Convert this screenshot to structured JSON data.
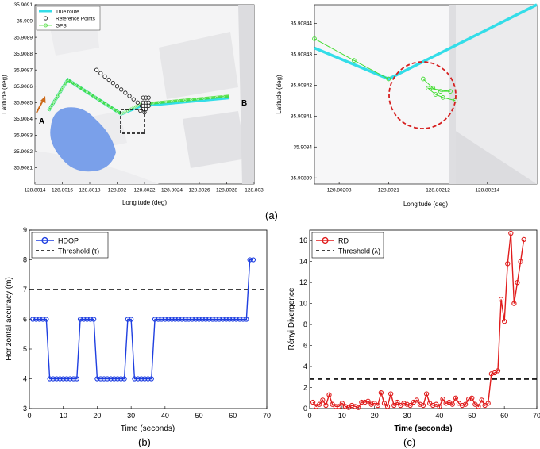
{
  "captions": {
    "a": "(a)",
    "b": "(b)",
    "c": "(c)"
  },
  "colors": {
    "true_route": "#33dde8",
    "gps": "#44dd33",
    "ref": "#222222",
    "hdop": "#1f3fe0",
    "rd": "#e01c1c",
    "threshold": "#000000",
    "lake": "#7aa0ea",
    "circle": "#d62020",
    "arrow": "#cc6a1a"
  },
  "chart_data": [
    {
      "type": "line",
      "panel": "a-left",
      "xlabel": "Longitude (deg)",
      "ylabel": "Latitude (deg)",
      "xlim": [
        128.8014,
        128.803
      ],
      "ylim": [
        35.908,
        35.9091
      ],
      "xticks": [
        "128.8014",
        "128.8016",
        "128.8018",
        "128.802",
        "128.8022",
        "128.8024",
        "128.8026",
        "128.8028",
        "128.803"
      ],
      "yticks": [
        "35.9081",
        "35.9082",
        "35.9083",
        "35.9084",
        "35.9085",
        "35.9086",
        "35.9087",
        "35.9088",
        "35.9089",
        "35.909",
        "35.9091"
      ],
      "legend": [
        "True route",
        "Reference Points",
        "GPS"
      ],
      "legend_position": "top-left",
      "annotations": {
        "start": "A",
        "end": "B"
      },
      "series": [
        {
          "name": "True route",
          "x": [
            128.8015,
            128.80164,
            128.80203,
            128.80217,
            128.80282
          ],
          "y": [
            35.90845,
            35.90864,
            35.90843,
            35.90848,
            35.90853
          ]
        },
        {
          "name": "GPS",
          "x": [
            128.8015,
            128.80164,
            128.80203,
            128.80217,
            128.80282
          ],
          "y": [
            35.90845,
            35.90864,
            35.90843,
            35.90849,
            35.90854
          ]
        },
        {
          "name": "Reference Points",
          "x": [
            128.80185,
            128.80188,
            128.80191,
            128.80194,
            128.80197,
            128.802,
            128.80203,
            128.80206,
            128.80209,
            128.80212,
            128.80215,
            128.80218,
            128.80219,
            128.80221,
            128.80223,
            128.80219,
            128.80221,
            128.80223,
            128.80219,
            128.80221,
            128.80223,
            128.80219,
            128.80221,
            128.8022,
            128.80217
          ],
          "y": [
            35.9087,
            35.90868,
            35.90866,
            35.90864,
            35.90862,
            35.9086,
            35.90858,
            35.90856,
            35.90854,
            35.90852,
            35.9085,
            35.90848,
            35.90853,
            35.90853,
            35.90853,
            35.9085,
            35.9085,
            35.9085,
            35.90848,
            35.90848,
            35.90848,
            35.90846,
            35.90846,
            35.90844,
            35.90845
          ]
        }
      ]
    },
    {
      "type": "line",
      "panel": "a-right",
      "xlabel": "Longitude (deg)",
      "ylabel": "Latitude (deg)",
      "xlim": [
        128.80207,
        128.80216
      ],
      "ylim": [
        35.908388,
        35.908446
      ],
      "xticks": [
        "128.80208",
        "128.8021",
        "128.80212",
        "128.80214"
      ],
      "yticks": [
        "35.90839",
        "35.9084",
        "35.90841",
        "35.90842",
        "35.90843",
        "35.90844"
      ],
      "series": [
        {
          "name": "True route",
          "x": [
            128.80207,
            128.8021,
            128.80216
          ],
          "y": [
            35.908432,
            35.908422,
            35.908446
          ]
        },
        {
          "name": "GPS",
          "x": [
            128.80207,
            128.802086,
            128.8021,
            128.802114,
            128.802118,
            128.802121,
            128.802125,
            128.802116,
            128.802119,
            128.802122,
            128.802127
          ],
          "y": [
            35.908435,
            35.908428,
            35.908422,
            35.908422,
            35.908419,
            35.908418,
            35.908418,
            35.908419,
            35.908417,
            35.908416,
            35.908415
          ]
        }
      ]
    },
    {
      "type": "line",
      "panel": "b",
      "xlabel": "Time (seconds)",
      "ylabel": "Horizontal accuracy (m)",
      "xlim": [
        0,
        70
      ],
      "ylim": [
        3,
        9
      ],
      "xticks": [
        "0",
        "10",
        "20",
        "30",
        "40",
        "50",
        "60",
        "70"
      ],
      "yticks": [
        "3",
        "4",
        "5",
        "6",
        "7",
        "8",
        "9"
      ],
      "legend_position": "top-left",
      "threshold": 7,
      "series": [
        {
          "name": "HDOP",
          "x": [
            1,
            2,
            3,
            4,
            5,
            6,
            7,
            8,
            9,
            10,
            11,
            12,
            13,
            14,
            15,
            16,
            17,
            18,
            19,
            20,
            21,
            22,
            23,
            24,
            25,
            26,
            27,
            28,
            29,
            30,
            31,
            32,
            33,
            34,
            35,
            36,
            37,
            38,
            39,
            40,
            41,
            42,
            43,
            44,
            45,
            46,
            47,
            48,
            49,
            50,
            51,
            52,
            53,
            54,
            55,
            56,
            57,
            58,
            59,
            60,
            61,
            62,
            63,
            64,
            65,
            66
          ],
          "values": [
            6,
            6,
            6,
            6,
            6,
            4,
            4,
            4,
            4,
            4,
            4,
            4,
            4,
            4,
            6,
            6,
            6,
            6,
            6,
            4,
            4,
            4,
            4,
            4,
            4,
            4,
            4,
            4,
            6,
            6,
            4,
            4,
            4,
            4,
            4,
            4,
            6,
            6,
            6,
            6,
            6,
            6,
            6,
            6,
            6,
            6,
            6,
            6,
            6,
            6,
            6,
            6,
            6,
            6,
            6,
            6,
            6,
            6,
            6,
            6,
            6,
            6,
            6,
            6,
            8,
            8
          ]
        },
        {
          "name": "Threshold (τ)",
          "values": [
            7,
            7
          ]
        }
      ]
    },
    {
      "type": "line",
      "panel": "c",
      "xlabel": "Time (seconds)",
      "ylabel": "Rényi Divergence",
      "xlim": [
        0,
        70
      ],
      "ylim": [
        0,
        17
      ],
      "xticks": [
        "0",
        "10",
        "20",
        "30",
        "40",
        "50",
        "60",
        "70"
      ],
      "yticks": [
        "0",
        "2",
        "4",
        "6",
        "8",
        "10",
        "12",
        "14",
        "16"
      ],
      "legend_position": "top-left",
      "threshold": 2.8,
      "series": [
        {
          "name": "RD",
          "x": [
            1,
            2,
            3,
            4,
            5,
            6,
            7,
            8,
            9,
            10,
            11,
            12,
            13,
            14,
            15,
            16,
            17,
            18,
            19,
            20,
            21,
            22,
            23,
            24,
            25,
            26,
            27,
            28,
            29,
            30,
            31,
            32,
            33,
            34,
            35,
            36,
            37,
            38,
            39,
            40,
            41,
            42,
            43,
            44,
            45,
            46,
            47,
            48,
            49,
            50,
            51,
            52,
            53,
            54,
            55,
            56,
            57,
            58,
            59,
            60,
            61,
            62,
            63,
            64,
            65,
            66
          ],
          "values": [
            0.6,
            0.2,
            0.4,
            0.8,
            0.3,
            1.3,
            0.4,
            0.2,
            0.2,
            0.5,
            0.2,
            0.1,
            0.3,
            0.2,
            0.1,
            0.6,
            0.6,
            0.7,
            0.4,
            0.5,
            0.3,
            1.5,
            0.5,
            0.2,
            1.4,
            0.3,
            0.6,
            0.3,
            0.5,
            0.4,
            0.3,
            0.6,
            0.8,
            0.4,
            0.3,
            1.4,
            0.5,
            0.3,
            0.4,
            0.2,
            0.9,
            0.5,
            0.6,
            0.4,
            1.0,
            0.5,
            0.3,
            0.4,
            0.9,
            1.0,
            0.4,
            0.2,
            0.8,
            0.3,
            0.5,
            3.3,
            3.4,
            3.6,
            10.4,
            8.3,
            13.8,
            16.7,
            10.0,
            12.0,
            14.0,
            16.1
          ]
        },
        {
          "name": "Threshold (λ)",
          "values": [
            2.8,
            2.8
          ]
        }
      ]
    }
  ]
}
